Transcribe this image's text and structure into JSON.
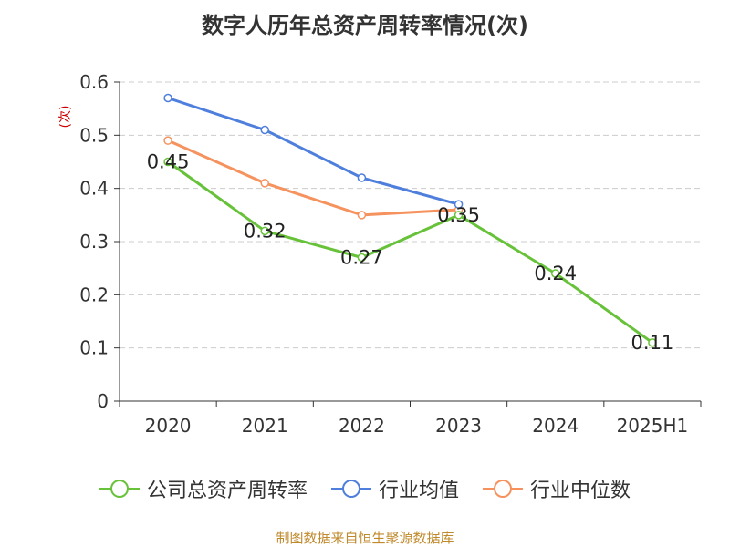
{
  "chart_data": {
    "type": "line",
    "title": "数字人历年总资产周转率情况(次)",
    "ylabel": "(次)",
    "xlabel": "",
    "categories": [
      "2020",
      "2021",
      "2022",
      "2023",
      "2024",
      "2025H1"
    ],
    "ylim": [
      0,
      0.6
    ],
    "yticks": [
      "0",
      "0.1",
      "0.2",
      "0.3",
      "0.4",
      "0.5",
      "0.6"
    ],
    "grid": true,
    "legend_position": "bottom",
    "series": [
      {
        "name": "公司总资产周转率",
        "color": "#67c23a",
        "values": [
          0.45,
          0.32,
          0.27,
          0.35,
          0.24,
          0.11
        ],
        "labels": [
          "0.45",
          "0.32",
          "0.27",
          "0.35",
          "0.24",
          "0.11"
        ]
      },
      {
        "name": "行业均值",
        "color": "#4f7fdc",
        "values": [
          0.57,
          0.51,
          0.42,
          0.37,
          null,
          null
        ]
      },
      {
        "name": "行业中位数",
        "color": "#f5925e",
        "values": [
          0.49,
          0.41,
          0.35,
          0.36,
          null,
          null
        ]
      }
    ]
  },
  "source": "制图数据来自恒生聚源数据库"
}
